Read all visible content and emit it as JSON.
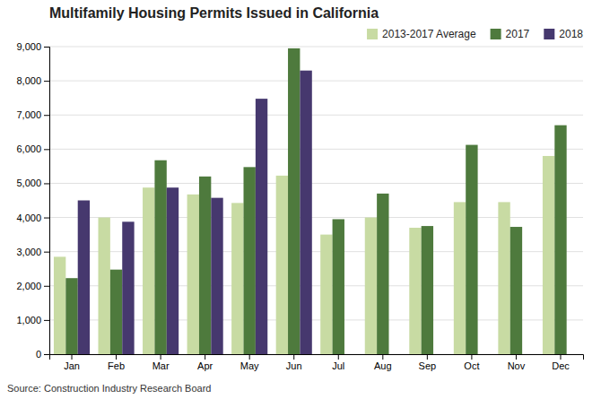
{
  "chart_data": {
    "type": "bar",
    "title": "Multifamily Housing Permits Issued in California",
    "annotation": "Source: Construction Industry Research Board",
    "categories": [
      "Jan",
      "Feb",
      "Mar",
      "Apr",
      "May",
      "Jun",
      "Jul",
      "Aug",
      "Sep",
      "Oct",
      "Nov",
      "Dec"
    ],
    "series": [
      {
        "name": "2013-2017 Average",
        "color": "#c8dba3",
        "values": [
          2850,
          4000,
          4875,
          4675,
          4425,
          5225,
          3500,
          4000,
          3700,
          4450,
          4450,
          5800
        ]
      },
      {
        "name": "2017",
        "color": "#4e7a3d",
        "values": [
          2225,
          2475,
          5675,
          5200,
          5475,
          8950,
          3950,
          4700,
          3750,
          6125,
          3725,
          6700
        ]
      },
      {
        "name": "2018",
        "color": "#46386e",
        "values": [
          4500,
          3875,
          4875,
          4575,
          7475,
          8300,
          null,
          null,
          null,
          null,
          null,
          null
        ]
      }
    ],
    "ylim": [
      0,
      9000
    ],
    "yticks": [
      0,
      {
        "value": 1000,
        "label": "1,000"
      },
      {
        "value": 2000,
        "label": "2,000"
      },
      {
        "value": 3000,
        "label": "3,000"
      },
      {
        "value": 4000,
        "label": "4,000"
      },
      {
        "value": 5000,
        "label": "5,000"
      },
      {
        "value": 6000,
        "label": "6,000"
      },
      {
        "value": 7000,
        "label": "7,000"
      },
      {
        "value": 8000,
        "label": "8,000"
      },
      {
        "value": 9000,
        "label": "9,000"
      }
    ],
    "grid": true,
    "legend": "upper right"
  }
}
